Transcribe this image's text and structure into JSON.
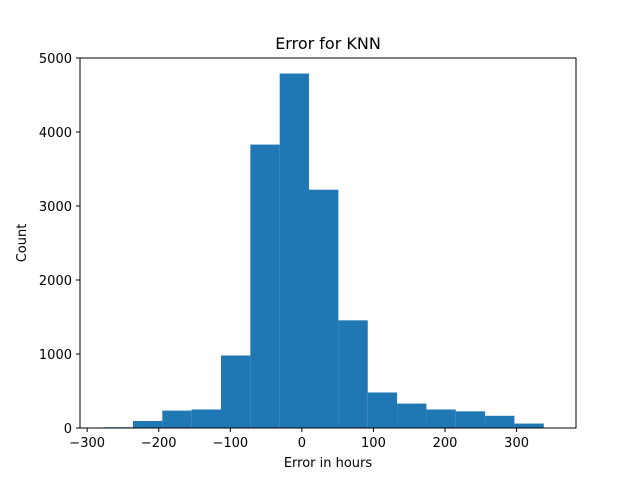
{
  "chart_data": {
    "type": "bar",
    "title": "Error for KNN",
    "xlabel": "Error in hours",
    "ylabel": "Count",
    "xlim": [
      -310,
      383
    ],
    "ylim": [
      0,
      5000
    ],
    "xticks": [
      -300,
      -200,
      -100,
      0,
      100,
      200,
      300
    ],
    "xtick_labels": [
      "−300",
      "−200",
      "−100",
      "0",
      "100",
      "200",
      "300"
    ],
    "yticks": [
      0,
      1000,
      2000,
      3000,
      4000,
      5000
    ],
    "ytick_labels": [
      "0",
      "1000",
      "2000",
      "3000",
      "4000",
      "5000"
    ],
    "grid": false,
    "legend": "none",
    "bar_color": "#1f77b4",
    "bin_edges": [
      -277,
      -236,
      -195,
      -154,
      -113,
      -72,
      -31,
      10,
      51,
      92,
      133,
      174,
      215,
      256,
      297,
      338
    ],
    "counts": [
      10,
      95,
      235,
      250,
      980,
      3830,
      4790,
      3220,
      1455,
      480,
      330,
      250,
      225,
      165,
      60
    ]
  }
}
